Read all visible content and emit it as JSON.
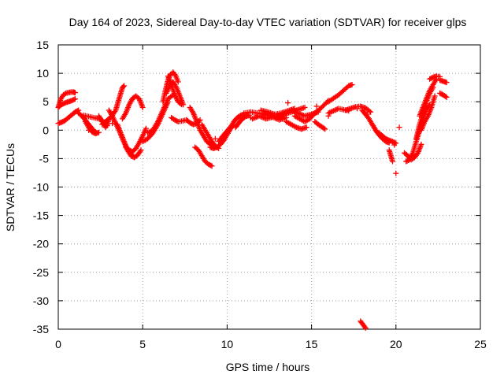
{
  "chart_data": {
    "type": "scatter",
    "title": "Day 164 of 2023, Sidereal Day-to-day VTEC variation (SDTVAR) for receiver glps",
    "xlabel": "GPS time / hours",
    "ylabel": "SDTVAR / TECUs",
    "xlim": [
      0,
      25
    ],
    "ylim": [
      -35,
      15
    ],
    "xticks": [
      0,
      5,
      10,
      15,
      20,
      25
    ],
    "yticks": [
      15,
      10,
      5,
      0,
      -5,
      -10,
      -15,
      -20,
      -25,
      -30,
      -35
    ],
    "grid": true,
    "marker": "+",
    "color": "#ff0000",
    "segments": [
      {
        "x": [
          0.0,
          0.15,
          0.3,
          0.45,
          0.6,
          0.75,
          0.9,
          1.0
        ],
        "y": [
          4.0,
          5.5,
          6.2,
          6.5,
          6.6,
          6.7,
          6.7,
          6.6
        ]
      },
      {
        "x": [
          0.0,
          0.2,
          0.4,
          0.6,
          0.8,
          1.0
        ],
        "y": [
          4.0,
          4.5,
          4.8,
          5.0,
          5.2,
          5.5
        ]
      },
      {
        "x": [
          0.0,
          0.2,
          0.4,
          0.6,
          0.8,
          1.0,
          1.2
        ],
        "y": [
          1.2,
          1.4,
          1.7,
          2.2,
          2.7,
          3.2,
          3.5
        ]
      },
      {
        "x": [
          1.2,
          1.4,
          1.6,
          1.8,
          2.0,
          2.2
        ],
        "y": [
          3.0,
          2.5,
          1.8,
          1.0,
          0.3,
          -0.3
        ]
      },
      {
        "x": [
          1.6,
          1.8,
          2.0,
          2.2,
          2.4
        ],
        "y": [
          1.5,
          0.5,
          -0.3,
          -0.6,
          -0.4
        ]
      },
      {
        "x": [
          1.5,
          1.8,
          2.1,
          2.4,
          2.6
        ],
        "y": [
          2.6,
          2.4,
          2.2,
          2.0,
          1.8
        ]
      },
      {
        "x": [
          2.4,
          2.5,
          2.6,
          2.7,
          2.8,
          2.9,
          3.0
        ],
        "y": [
          2.5,
          2.0,
          1.5,
          1.0,
          0.5,
          1.0,
          2.0
        ]
      },
      {
        "x": [
          2.6,
          2.8,
          3.0,
          3.2
        ],
        "y": [
          1.0,
          1.5,
          2.0,
          2.5
        ]
      },
      {
        "x": [
          3.0,
          3.2,
          3.4,
          3.5,
          3.6,
          3.7,
          3.8,
          3.9
        ],
        "y": [
          2.0,
          2.6,
          3.5,
          4.5,
          5.5,
          6.5,
          7.5,
          7.8
        ]
      },
      {
        "x": [
          3.0,
          3.2,
          3.4,
          3.6,
          3.8,
          4.0,
          4.2,
          4.4
        ],
        "y": [
          3.5,
          2.5,
          1.2,
          0.0,
          -1.5,
          -2.8,
          -3.8,
          -4.4
        ]
      },
      {
        "x": [
          3.5,
          3.7,
          3.9,
          4.1,
          4.3,
          4.5,
          4.7,
          4.9
        ],
        "y": [
          1.0,
          -0.5,
          -2.0,
          -3.5,
          -4.5,
          -4.8,
          -4.4,
          -3.5
        ]
      },
      {
        "x": [
          4.0,
          4.2,
          4.4,
          4.6,
          4.8,
          5.0,
          5.2
        ],
        "y": [
          -3.0,
          -3.5,
          -3.8,
          -3.2,
          -2.2,
          -1.0,
          0.3
        ]
      },
      {
        "x": [
          3.8,
          4.0,
          4.2,
          4.4,
          4.6,
          4.8,
          5.0
        ],
        "y": [
          2.0,
          3.0,
          4.5,
          5.6,
          6.0,
          5.5,
          4.0
        ]
      },
      {
        "x": [
          5.0,
          5.3,
          5.6,
          5.9,
          6.2,
          6.5
        ],
        "y": [
          -2.0,
          -1.5,
          -0.5,
          1.0,
          3.0,
          5.0
        ]
      },
      {
        "x": [
          5.3,
          5.6,
          5.9,
          6.2,
          6.5,
          6.8
        ],
        "y": [
          -0.5,
          0.0,
          1.5,
          3.5,
          5.5,
          6.2
        ]
      },
      {
        "x": [
          6.2,
          6.35,
          6.5,
          6.65,
          6.8,
          6.95,
          7.1
        ],
        "y": [
          5.0,
          7.0,
          8.8,
          9.8,
          10.2,
          9.6,
          8.5
        ]
      },
      {
        "x": [
          6.4,
          6.6,
          6.8,
          7.0,
          7.2,
          7.4
        ],
        "y": [
          6.5,
          7.8,
          8.5,
          7.5,
          6.0,
          4.5
        ]
      },
      {
        "x": [
          6.5,
          6.7,
          6.9,
          7.1,
          7.3
        ],
        "y": [
          9.5,
          8.0,
          6.2,
          5.0,
          4.5
        ]
      },
      {
        "x": [
          6.7,
          6.9,
          7.1,
          7.3,
          7.6
        ],
        "y": [
          2.2,
          1.8,
          1.5,
          1.6,
          1.8
        ]
      },
      {
        "x": [
          7.6,
          7.8,
          8.0,
          8.2,
          8.4
        ],
        "y": [
          1.8,
          1.3,
          1.0,
          1.2,
          1.8
        ]
      },
      {
        "x": [
          7.8,
          8.0,
          8.2,
          8.4,
          8.6,
          8.8,
          9.0,
          9.2
        ],
        "y": [
          4.0,
          3.0,
          1.5,
          0.0,
          -1.0,
          -2.0,
          -2.5,
          -2.8
        ]
      },
      {
        "x": [
          8.1,
          8.3,
          8.5,
          8.7,
          8.9,
          9.1
        ],
        "y": [
          -3.0,
          -3.5,
          -4.5,
          -5.5,
          -6.0,
          -6.3
        ]
      },
      {
        "x": [
          8.5,
          8.7,
          8.9,
          9.1,
          9.3,
          9.5
        ],
        "y": [
          1.0,
          0.0,
          -1.0,
          -2.0,
          -2.8,
          -3.2
        ]
      },
      {
        "x": [
          9.0,
          9.2,
          9.4,
          9.6,
          9.8,
          10.0,
          10.2,
          10.4
        ],
        "y": [
          -3.0,
          -3.2,
          -3.0,
          -2.5,
          -1.8,
          -0.8,
          0.2,
          1.0
        ]
      },
      {
        "x": [
          9.5,
          9.7,
          9.9,
          10.1,
          10.3
        ],
        "y": [
          -2.0,
          -1.2,
          -0.5,
          0.2,
          0.8
        ]
      },
      {
        "x": [
          10.0,
          10.2,
          10.4,
          10.6,
          10.8,
          11.0
        ],
        "y": [
          -0.5,
          0.5,
          1.5,
          2.2,
          2.6,
          2.8
        ]
      },
      {
        "x": [
          10.5,
          10.7,
          10.9,
          11.1,
          11.3
        ],
        "y": [
          0.5,
          1.3,
          2.0,
          2.4,
          2.6
        ]
      },
      {
        "x": [
          11.0,
          11.4,
          11.8,
          12.2,
          12.6,
          13.0,
          13.4
        ],
        "y": [
          3.0,
          3.2,
          3.0,
          2.8,
          2.5,
          2.6,
          2.8
        ]
      },
      {
        "x": [
          11.5,
          11.9,
          12.3,
          12.7,
          13.1,
          13.5
        ],
        "y": [
          2.0,
          2.5,
          2.0,
          2.3,
          1.8,
          2.2
        ]
      },
      {
        "x": [
          12.0,
          12.4,
          12.8,
          13.2,
          13.6,
          14.0
        ],
        "y": [
          3.5,
          3.2,
          2.8,
          3.0,
          3.4,
          3.8
        ]
      },
      {
        "x": [
          13.0,
          13.4,
          13.8,
          14.2,
          14.6
        ],
        "y": [
          2.2,
          2.8,
          3.2,
          3.6,
          4.0
        ]
      },
      {
        "x": [
          13.5,
          13.8,
          14.1,
          14.4,
          14.7
        ],
        "y": [
          1.5,
          1.0,
          0.5,
          0.2,
          0.5
        ]
      },
      {
        "x": [
          13.8,
          14.2,
          14.6,
          15.0,
          15.4
        ],
        "y": [
          3.5,
          3.0,
          2.5,
          2.8,
          3.2
        ]
      },
      {
        "x": [
          14.0,
          14.3,
          14.6,
          14.9,
          15.2
        ],
        "y": [
          2.5,
          2.0,
          1.5,
          2.0,
          3.0
        ]
      },
      {
        "x": [
          15.0,
          15.2,
          15.4,
          15.6,
          15.8,
          16.0
        ],
        "y": [
          2.5,
          3.0,
          3.5,
          4.0,
          4.6,
          5.2
        ]
      },
      {
        "x": [
          15.2,
          15.4,
          15.6,
          15.8
        ],
        "y": [
          1.5,
          1.0,
          0.6,
          0.2
        ]
      },
      {
        "x": [
          16.0,
          16.3,
          16.6,
          16.9,
          17.2,
          17.4
        ],
        "y": [
          5.0,
          5.6,
          6.2,
          7.0,
          7.8,
          8.0
        ]
      },
      {
        "x": [
          16.0,
          16.3,
          16.6,
          16.9,
          17.2
        ],
        "y": [
          3.0,
          3.4,
          3.8,
          3.6,
          3.4
        ]
      },
      {
        "x": [
          17.0,
          17.3,
          17.6,
          17.9,
          18.2,
          18.5
        ],
        "y": [
          3.5,
          3.8,
          4.1,
          4.2,
          3.9,
          3.2
        ]
      },
      {
        "x": [
          18.0,
          18.2,
          18.4,
          18.6,
          18.8,
          19.0
        ],
        "y": [
          3.5,
          2.8,
          2.0,
          1.0,
          0.0,
          -0.8
        ]
      },
      {
        "x": [
          18.6,
          18.8,
          19.0,
          19.2,
          19.4,
          19.6
        ],
        "y": [
          1.0,
          0.0,
          -0.8,
          -1.5,
          -2.0,
          -2.2
        ]
      },
      {
        "x": [
          19.0,
          19.2,
          19.4,
          19.6,
          19.8,
          20.0
        ],
        "y": [
          -0.5,
          -1.0,
          -1.5,
          -1.8,
          -2.0,
          -2.3
        ]
      },
      {
        "x": [
          19.6,
          19.7,
          19.8
        ],
        "y": [
          -3.5,
          -4.5,
          -5.5
        ]
      },
      {
        "x": [
          20.5,
          20.7,
          20.9,
          21.1,
          21.3,
          21.5
        ],
        "y": [
          -4.0,
          -4.5,
          -5.2,
          -4.8,
          -4.0,
          -2.5
        ]
      },
      {
        "x": [
          20.6,
          20.8,
          21.0,
          21.2,
          21.4,
          21.6,
          21.8,
          22.0
        ],
        "y": [
          -5.5,
          -5.2,
          -4.0,
          -2.0,
          0.0,
          2.0,
          3.5,
          4.5
        ]
      },
      {
        "x": [
          21.2,
          21.4,
          21.6,
          21.8,
          22.0,
          22.2
        ],
        "y": [
          -1.5,
          1.0,
          3.0,
          5.0,
          6.5,
          7.5
        ]
      },
      {
        "x": [
          21.4,
          21.6,
          21.8,
          22.0,
          22.2,
          22.4
        ],
        "y": [
          2.5,
          4.0,
          5.5,
          7.0,
          8.0,
          9.0
        ]
      },
      {
        "x": [
          22.0,
          22.2,
          22.4,
          22.6
        ],
        "y": [
          9.0,
          9.3,
          9.5,
          9.4
        ]
      },
      {
        "x": [
          21.5,
          21.7,
          21.9,
          22.1,
          22.3
        ],
        "y": [
          0.0,
          1.5,
          2.5,
          4.0,
          6.0
        ]
      },
      {
        "x": [
          22.6,
          22.8,
          23.0
        ],
        "y": [
          8.8,
          8.6,
          8.4
        ]
      },
      {
        "x": [
          22.6,
          22.8,
          23.0
        ],
        "y": [
          6.5,
          6.2,
          5.8
        ]
      },
      {
        "x": [
          17.9,
          18.0,
          18.1,
          18.2
        ],
        "y": [
          -33.6,
          -34.0,
          -34.4,
          -34.8
        ]
      }
    ],
    "extra_points": {
      "x": [
        20.0,
        3.2,
        2.9,
        13.6,
        11.4,
        15.3,
        16.0,
        17.7,
        18.3,
        9.3,
        5.5,
        1.8,
        20.2,
        19.9
      ],
      "y": [
        -7.6,
        1.2,
        0.8,
        4.8,
        2.2,
        4.2,
        2.5,
        3.8,
        2.8,
        -1.5,
        -0.8,
        0.0,
        0.5,
        -2.6
      ]
    }
  }
}
